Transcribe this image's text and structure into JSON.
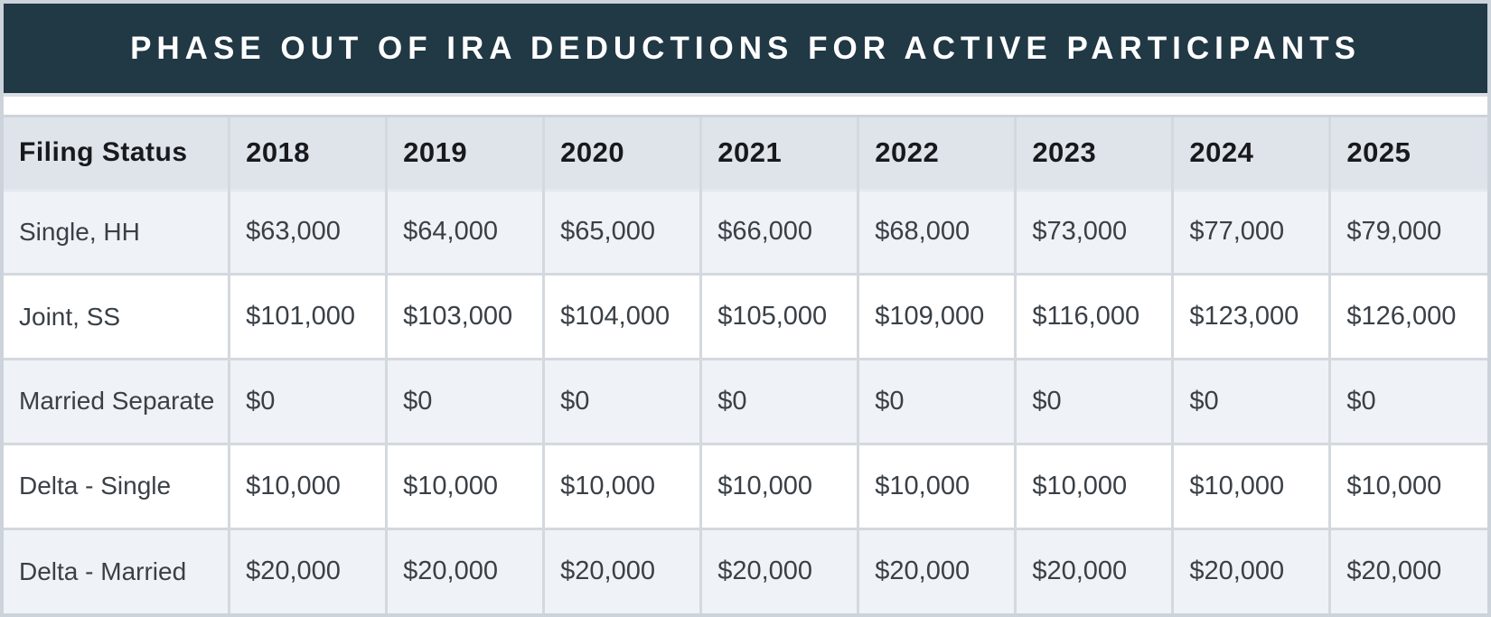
{
  "chart_data": {
    "type": "table",
    "title": "PHASE OUT OF IRA DEDUCTIONS FOR ACTIVE PARTICIPANTS",
    "columns": [
      "Filing Status",
      "2018",
      "2019",
      "2020",
      "2021",
      "2022",
      "2023",
      "2024",
      "2025"
    ],
    "rows": [
      {
        "label": "Single, HH",
        "values": [
          "$63,000",
          "$64,000",
          "$65,000",
          "$66,000",
          "$68,000",
          "$73,000",
          "$77,000",
          "$79,000"
        ]
      },
      {
        "label": "Joint, SS",
        "values": [
          "$101,000",
          "$103,000",
          "$104,000",
          "$105,000",
          "$109,000",
          "$116,000",
          "$123,000",
          "$126,000"
        ]
      },
      {
        "label": "Married Separate",
        "values": [
          "$0",
          "$0",
          "$0",
          "$0",
          "$0",
          "$0",
          "$0",
          "$0"
        ]
      },
      {
        "label": "Delta - Single",
        "values": [
          "$10,000",
          "$10,000",
          "$10,000",
          "$10,000",
          "$10,000",
          "$10,000",
          "$10,000",
          "$10,000"
        ]
      },
      {
        "label": "Delta - Married",
        "values": [
          "$20,000",
          "$20,000",
          "$20,000",
          "$20,000",
          "$20,000",
          "$20,000",
          "$20,000",
          "$20,000"
        ]
      }
    ],
    "layout": {
      "legend": "none",
      "grid": "on",
      "row_striping": "odd-rows-light"
    }
  },
  "colors": {
    "title_bar_bg": "#213845",
    "title_text": "#ffffff",
    "header_row_bg": "#dfe4ea",
    "row_alt_bg": "#eff2f6",
    "row_bg": "#ffffff",
    "grid_line": "#d3d9de",
    "frame": "#ccd3da",
    "header_text": "#17191d",
    "cell_text": "#3a4046"
  }
}
